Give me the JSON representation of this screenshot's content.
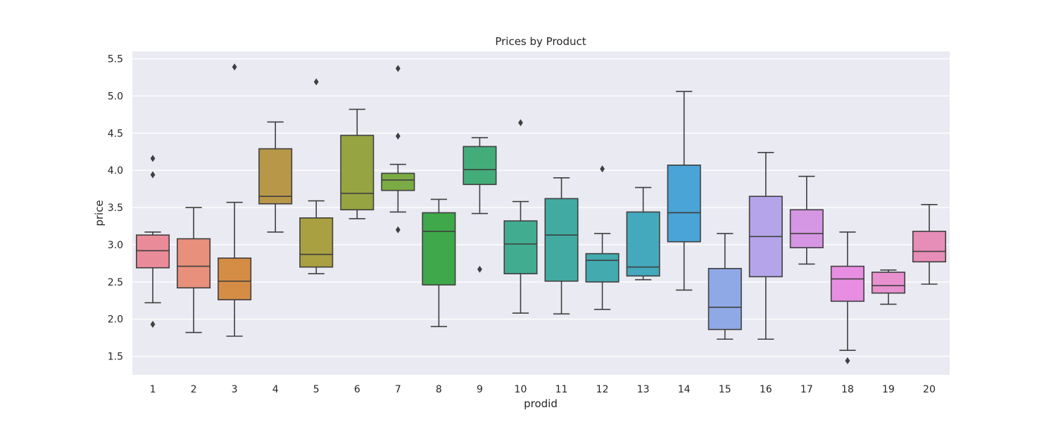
{
  "chart_data": {
    "type": "box",
    "title": "Prices by Product",
    "xlabel": "prodid",
    "ylabel": "price",
    "ylim": [
      1.25,
      5.6
    ],
    "yticks": [
      1.5,
      2.0,
      2.5,
      3.0,
      3.5,
      4.0,
      4.5,
      5.0,
      5.5
    ],
    "ytick_labels": [
      "1.5",
      "2.0",
      "2.5",
      "3.0",
      "3.5",
      "4.0",
      "4.5",
      "5.0",
      "5.5"
    ],
    "grid": true,
    "categories": [
      "1",
      "2",
      "3",
      "4",
      "5",
      "6",
      "7",
      "8",
      "9",
      "10",
      "11",
      "12",
      "13",
      "14",
      "15",
      "16",
      "17",
      "18",
      "19",
      "20"
    ],
    "colors": [
      "#ea8b9a",
      "#e8907b",
      "#d58c45",
      "#b99748",
      "#a9a041",
      "#97a442",
      "#7bab44",
      "#3ea84a",
      "#43ad7a",
      "#42ac91",
      "#41aba1",
      "#43aaaf",
      "#45a9bd",
      "#4aa4d6",
      "#8fa9e6",
      "#b5a4ea",
      "#d596e3",
      "#e88ee2",
      "#e891cf",
      "#e68eb7"
    ],
    "boxes": [
      {
        "whisker_low": 2.22,
        "q1": 2.69,
        "median": 2.92,
        "q3": 3.13,
        "whisker_high": 3.17,
        "outliers": [
          4.16,
          3.94,
          1.93
        ]
      },
      {
        "whisker_low": 1.82,
        "q1": 2.42,
        "median": 2.71,
        "q3": 3.08,
        "whisker_high": 3.5,
        "outliers": []
      },
      {
        "whisker_low": 1.77,
        "q1": 2.26,
        "median": 2.51,
        "q3": 2.82,
        "whisker_high": 3.57,
        "outliers": [
          5.39
        ]
      },
      {
        "whisker_low": 3.17,
        "q1": 3.55,
        "median": 3.65,
        "q3": 4.29,
        "whisker_high": 4.65,
        "outliers": []
      },
      {
        "whisker_low": 2.61,
        "q1": 2.7,
        "median": 2.87,
        "q3": 3.36,
        "whisker_high": 3.59,
        "outliers": [
          5.19
        ]
      },
      {
        "whisker_low": 3.35,
        "q1": 3.47,
        "median": 3.69,
        "q3": 4.47,
        "whisker_high": 4.82,
        "outliers": []
      },
      {
        "whisker_low": 3.44,
        "q1": 3.73,
        "median": 3.87,
        "q3": 3.96,
        "whisker_high": 4.08,
        "outliers": [
          5.37,
          4.46,
          3.2
        ]
      },
      {
        "whisker_low": 1.9,
        "q1": 2.46,
        "median": 3.18,
        "q3": 3.43,
        "whisker_high": 3.61,
        "outliers": []
      },
      {
        "whisker_low": 3.42,
        "q1": 3.81,
        "median": 4.01,
        "q3": 4.32,
        "whisker_high": 4.44,
        "outliers": [
          2.67
        ]
      },
      {
        "whisker_low": 2.08,
        "q1": 2.61,
        "median": 3.01,
        "q3": 3.32,
        "whisker_high": 3.58,
        "outliers": [
          4.64
        ]
      },
      {
        "whisker_low": 2.07,
        "q1": 2.51,
        "median": 3.13,
        "q3": 3.62,
        "whisker_high": 3.9,
        "outliers": []
      },
      {
        "whisker_low": 2.13,
        "q1": 2.5,
        "median": 2.79,
        "q3": 2.88,
        "whisker_high": 3.15,
        "outliers": [
          4.02
        ]
      },
      {
        "whisker_low": 2.53,
        "q1": 2.58,
        "median": 2.7,
        "q3": 3.44,
        "whisker_high": 3.77,
        "outliers": []
      },
      {
        "whisker_low": 2.39,
        "q1": 3.04,
        "median": 3.43,
        "q3": 4.07,
        "whisker_high": 5.06,
        "outliers": []
      },
      {
        "whisker_low": 1.73,
        "q1": 1.86,
        "median": 2.16,
        "q3": 2.68,
        "whisker_high": 3.15,
        "outliers": []
      },
      {
        "whisker_low": 1.73,
        "q1": 2.57,
        "median": 3.11,
        "q3": 3.65,
        "whisker_high": 4.24,
        "outliers": []
      },
      {
        "whisker_low": 2.74,
        "q1": 2.96,
        "median": 3.15,
        "q3": 3.47,
        "whisker_high": 3.92,
        "outliers": []
      },
      {
        "whisker_low": 1.58,
        "q1": 2.24,
        "median": 2.54,
        "q3": 2.71,
        "whisker_high": 3.17,
        "outliers": [
          1.44
        ]
      },
      {
        "whisker_low": 2.2,
        "q1": 2.35,
        "median": 2.45,
        "q3": 2.63,
        "whisker_high": 2.66,
        "outliers": []
      },
      {
        "whisker_low": 2.47,
        "q1": 2.77,
        "median": 2.91,
        "q3": 3.18,
        "whisker_high": 3.54,
        "outliers": []
      }
    ]
  }
}
